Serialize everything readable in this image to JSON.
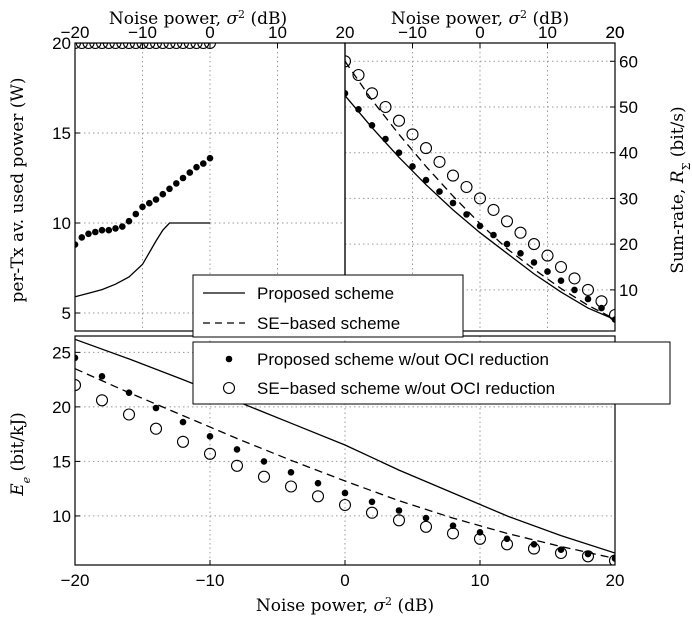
{
  "chart_data": [
    {
      "id": "power",
      "type": "line",
      "xlabel": "Noise power, σ² (dB)",
      "ylabel": "per-Tx av. used power (W)",
      "xlim": [
        -20,
        20
      ],
      "ylim": [
        4,
        20
      ],
      "xticks": [
        -20,
        -10,
        0,
        10,
        20
      ],
      "yticks": [
        5,
        10,
        15,
        20
      ],
      "grid": true,
      "series": [
        {
          "name": "Proposed scheme",
          "style": "solid",
          "x": [
            -20,
            -18,
            -16,
            -14,
            -12,
            -10,
            -8,
            -7,
            -6,
            -4,
            -2,
            0
          ],
          "y": [
            5.9,
            6.1,
            6.3,
            6.6,
            7.0,
            7.7,
            9.0,
            9.6,
            10.0,
            10.0,
            10.0,
            10.0
          ]
        },
        {
          "name": "SE-based scheme",
          "style": "dashed",
          "x": [
            -20,
            0
          ],
          "y": [
            20,
            20
          ]
        },
        {
          "name": "Proposed scheme w/out OCI reduction",
          "style": "dots",
          "x": [
            -20,
            -19,
            -18,
            -17,
            -16,
            -15,
            -14,
            -13,
            -12,
            -11,
            -10,
            -9,
            -8,
            -7,
            -6,
            -5,
            -4,
            -3,
            -2,
            -1,
            0
          ],
          "y": [
            8.8,
            9.2,
            9.4,
            9.5,
            9.6,
            9.6,
            9.7,
            9.8,
            10.1,
            10.5,
            10.9,
            11.1,
            11.3,
            11.6,
            11.9,
            12.2,
            12.5,
            12.8,
            13.1,
            13.3,
            13.6
          ]
        },
        {
          "name": "SE-based scheme w/out OCI reduction",
          "style": "circles",
          "x": [
            -20,
            -19,
            -18,
            -17,
            -16,
            -15,
            -14,
            -13,
            -12,
            -11,
            -10,
            -9,
            -8,
            -7,
            -6,
            -5,
            -4,
            -3,
            -2,
            -1,
            0
          ],
          "y": [
            20,
            20,
            20,
            20,
            20,
            20,
            20,
            20,
            20,
            20,
            20,
            20,
            20,
            20,
            20,
            20,
            20,
            20,
            20,
            20,
            20
          ]
        }
      ]
    },
    {
      "id": "sumrate",
      "type": "line",
      "xlabel": "Noise power, σ² (dB)",
      "ylabel": "Sum-rate, R_Σ (bit/s)",
      "xlim": [
        0,
        20
      ],
      "ylim": [
        1,
        64
      ],
      "xticks": [
        -10,
        0,
        10,
        20
      ],
      "xtick_labels_scale": [
        -20,
        20
      ],
      "yticks": [
        10,
        20,
        30,
        40,
        50,
        60
      ],
      "grid": true,
      "series": [
        {
          "name": "Proposed scheme",
          "style": "solid",
          "x": [
            0,
            2,
            4,
            6,
            8,
            10,
            12,
            14,
            16,
            18,
            20
          ],
          "y": [
            52.5,
            45.5,
            39,
            33,
            27.5,
            22.5,
            18,
            13.5,
            9.5,
            6,
            3.5
          ]
        },
        {
          "name": "SE-based scheme",
          "style": "dashed",
          "x": [
            0,
            2,
            4,
            6,
            8,
            10,
            12,
            14,
            16,
            18,
            20
          ],
          "y": [
            60,
            51.5,
            44,
            37,
            30.5,
            24.5,
            19,
            14.5,
            10.3,
            6.6,
            3.6
          ]
        },
        {
          "name": "Proposed scheme w/out OCI reduction",
          "style": "dots",
          "x": [
            0,
            1,
            2,
            3,
            4,
            5,
            6,
            7,
            8,
            9,
            10,
            11,
            12,
            13,
            14,
            15,
            16,
            17,
            18,
            19,
            20
          ],
          "y": [
            53,
            49.5,
            46,
            43,
            40,
            37,
            34,
            31.5,
            29,
            26.5,
            24,
            22,
            20,
            18,
            16,
            14,
            12,
            10,
            8,
            6,
            3.5
          ]
        },
        {
          "name": "SE-based scheme w/out OCI reduction",
          "style": "circles",
          "x": [
            0,
            1,
            2,
            3,
            4,
            5,
            6,
            7,
            8,
            9,
            10,
            11,
            12,
            13,
            14,
            15,
            16,
            17,
            18,
            19,
            20
          ],
          "y": [
            60,
            57,
            53,
            50,
            47,
            44,
            41,
            38,
            35,
            32.5,
            30,
            27.5,
            25,
            22.5,
            20,
            17.5,
            15,
            12.5,
            10,
            7.5,
            4.5
          ]
        }
      ]
    },
    {
      "id": "ee",
      "type": "line",
      "xlabel": "Noise power, σ² (dB)",
      "ylabel": "E_e (bit/kJ)",
      "xlim": [
        -20,
        20
      ],
      "ylim": [
        5.5,
        26.5
      ],
      "xticks": [
        -20,
        -10,
        0,
        10,
        20
      ],
      "yticks": [
        10,
        15,
        20,
        25
      ],
      "grid": true,
      "series": [
        {
          "name": "Proposed scheme",
          "style": "solid",
          "x": [
            -20,
            -16,
            -12,
            -8,
            -4,
            0,
            4,
            8,
            12,
            16,
            20
          ],
          "y": [
            26.2,
            24.4,
            22.5,
            20.5,
            18.5,
            16.5,
            14.2,
            12.1,
            10.0,
            8.2,
            6.6
          ]
        },
        {
          "name": "SE-based scheme",
          "style": "dashed",
          "x": [
            -20,
            -16,
            -12,
            -8,
            -4,
            0,
            4,
            8,
            12,
            16,
            20
          ],
          "y": [
            23.5,
            21.3,
            19.2,
            17.1,
            15.1,
            13.2,
            11.4,
            9.8,
            8.4,
            7.2,
            6.1
          ]
        },
        {
          "name": "Proposed scheme w/out OCI reduction",
          "style": "dots",
          "x": [
            -20,
            -18,
            -16,
            -14,
            -12,
            -10,
            -8,
            -6,
            -4,
            -2,
            0,
            2,
            4,
            6,
            8,
            10,
            12,
            14,
            16,
            18,
            20
          ],
          "y": [
            24.5,
            22.8,
            21.3,
            19.9,
            18.6,
            17.3,
            16.1,
            15.0,
            14.0,
            13.0,
            12.1,
            11.3,
            10.5,
            9.8,
            9.1,
            8.5,
            7.9,
            7.4,
            6.9,
            6.5,
            6.1
          ]
        },
        {
          "name": "SE-based scheme w/out OCI reduction",
          "style": "circles",
          "x": [
            -20,
            -18,
            -16,
            -14,
            -12,
            -10,
            -8,
            -6,
            -4,
            -2,
            0,
            2,
            4,
            6,
            8,
            10,
            12,
            14,
            16,
            18,
            20
          ],
          "y": [
            22.0,
            20.6,
            19.3,
            18.0,
            16.8,
            15.7,
            14.6,
            13.6,
            12.7,
            11.8,
            11.0,
            10.3,
            9.6,
            9.0,
            8.4,
            7.9,
            7.4,
            7.0,
            6.6,
            6.3,
            5.9
          ]
        }
      ]
    }
  ],
  "legend": {
    "top_box": [
      "Proposed scheme",
      "SE−based scheme"
    ],
    "bottom_box": [
      "Proposed scheme w/out OCI reduction",
      "SE−based scheme w/out OCI reduction"
    ]
  },
  "labels": {
    "top_xlabel_left": "Noise power, σ² (dB)",
    "top_xlabel_right": "Noise power, σ² (dB)",
    "bottom_xlabel": "Noise power, σ² (dB)",
    "ylabel_left_top": "per-Tx av. used power (W)",
    "ylabel_right_top": "Sum-rate, R_Σ (bit/s)",
    "ylabel_bottom": "E_e (bit/kJ)"
  }
}
